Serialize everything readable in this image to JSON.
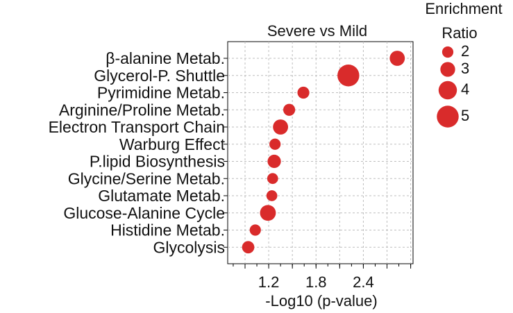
{
  "chart_data": {
    "type": "scatter",
    "title": "Severe vs Mild",
    "xlabel": "-Log10 (p-value)",
    "ylabel": "",
    "xlim": [
      0.68,
      3.03
    ],
    "x_ticks": [
      "1.2",
      "1.8",
      "2.4"
    ],
    "grid": true,
    "marker_color": "#d92b2b",
    "categories": [
      "β-alanine Metab.",
      "Glycerol-P. Shuttle",
      "Pyrimidine Metab.",
      "Arginine/Proline Metab.",
      "Electron Transport Chain",
      "Warburg Effect",
      "P.lipid Biosynthesis",
      "Glycine/Serine Metab.",
      "Glutamate Metab.",
      "Glucose-Alanine Cycle",
      "Histidine Metab.",
      "Glycolysis"
    ],
    "x": [
      2.83,
      2.21,
      1.64,
      1.46,
      1.35,
      1.28,
      1.27,
      1.25,
      1.24,
      1.19,
      1.03,
      0.94
    ],
    "enrichment_ratio": [
      3.1,
      5.0,
      2.2,
      2.2,
      3.1,
      2.0,
      2.6,
      1.9,
      1.9,
      3.3,
      2.0,
      2.3
    ],
    "legend": {
      "title": "Enrichment Ratio",
      "placement": "right",
      "values": [
        2,
        3,
        4,
        5
      ],
      "labels": [
        "2",
        "3",
        "4",
        "5"
      ]
    }
  }
}
